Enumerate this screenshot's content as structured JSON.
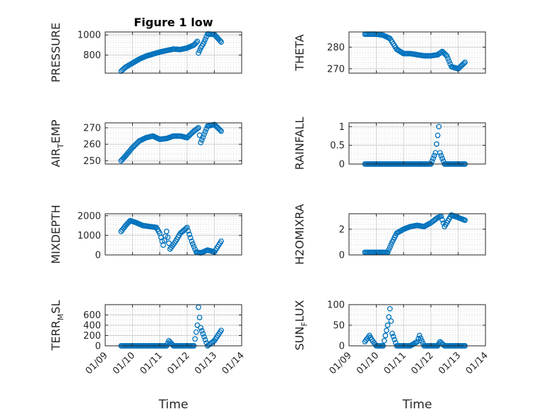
{
  "chart_data": [
    {
      "type": "scatter",
      "title": "Figure 1 low",
      "ylabel": "PRESSURE",
      "ylabel_parts": [
        "PRESSURE"
      ],
      "ylim": [
        620,
        1030
      ],
      "yticks": [
        800,
        1000
      ],
      "ytick_labels": [
        "800",
        "1000"
      ],
      "x": [
        "01/09 14:00",
        "01/09 18:00",
        "01/10 00:00",
        "01/10 06:00",
        "01/10 12:00",
        "01/10 18:00",
        "01/11 00:00",
        "01/11 06:00",
        "01/11 12:00",
        "01/11 18:00",
        "01/12 00:00",
        "01/12 06:00",
        "01/12 09:00",
        "01/12 10:00",
        "01/12 12:00",
        "01/12 15:00",
        "01/12 18:00",
        "01/13 00:00",
        "01/13 06:00"
      ],
      "y": [
        640,
        680,
        720,
        760,
        790,
        810,
        830,
        845,
        860,
        855,
        870,
        900,
        935,
        820,
        870,
        930,
        1010,
        1005,
        930
      ]
    },
    {
      "type": "scatter",
      "title": "",
      "ylabel": "THETA",
      "ylabel_parts": [
        "THETA"
      ],
      "ylim": [
        268,
        287
      ],
      "yticks": [
        270,
        280
      ],
      "ytick_labels": [
        "270",
        "280"
      ],
      "x": [
        "01/09 14:00",
        "01/09 18:00",
        "01/10 00:00",
        "01/10 06:00",
        "01/10 12:00",
        "01/10 18:00",
        "01/11 00:00",
        "01/11 06:00",
        "01/11 12:00",
        "01/11 18:00",
        "01/12 00:00",
        "01/12 06:00",
        "01/12 10:00",
        "01/12 14:00",
        "01/12 18:00",
        "01/13 00:00",
        "01/13 06:00"
      ],
      "y": [
        286,
        286,
        286,
        285.5,
        284,
        279,
        277,
        277,
        276.5,
        276,
        276,
        276.5,
        278,
        276,
        271,
        270,
        273
      ]
    },
    {
      "type": "scatter",
      "title": "",
      "ylabel": "AIR_TEMP",
      "ylabel_parts": [
        "AIR",
        "T",
        "EMP"
      ],
      "ylim": [
        248,
        273
      ],
      "yticks": [
        250,
        260,
        270
      ],
      "ytick_labels": [
        "250",
        "260",
        "270"
      ],
      "x": [
        "01/09 14:00",
        "01/09 18:00",
        "01/10 00:00",
        "01/10 06:00",
        "01/10 12:00",
        "01/10 18:00",
        "01/11 00:00",
        "01/11 06:00",
        "01/11 12:00",
        "01/11 18:00",
        "01/12 00:00",
        "01/12 06:00",
        "01/12 10:00",
        "01/12 12:00",
        "01/12 18:00",
        "01/13 00:00",
        "01/13 06:00"
      ],
      "y": [
        250,
        253,
        258,
        262,
        264,
        265,
        263,
        263.5,
        265,
        265,
        264,
        268,
        270,
        261,
        271,
        272,
        268
      ]
    },
    {
      "type": "scatter",
      "title": "",
      "ylabel": "RAINFALL",
      "ylabel_parts": [
        "RAINFALL"
      ],
      "ylim": [
        0,
        1.1
      ],
      "yticks": [
        0,
        0.5,
        1
      ],
      "ytick_labels": [
        "0",
        "0.5",
        "1"
      ],
      "x": [
        "01/09 14:00",
        "01/09 18:00",
        "01/10 00:00",
        "01/10 06:00",
        "01/10 12:00",
        "01/10 18:00",
        "01/11 00:00",
        "01/11 06:00",
        "01/11 12:00",
        "01/11 18:00",
        "01/12 00:00",
        "01/12 04:00",
        "01/12 07:00",
        "01/12 08:00",
        "01/12 12:00",
        "01/12 18:00",
        "01/13 00:00",
        "01/13 06:00"
      ],
      "y": [
        0,
        0,
        0,
        0,
        0,
        0,
        0,
        0,
        0,
        0,
        0,
        0.3,
        1,
        0.3,
        0,
        0,
        0,
        0
      ]
    },
    {
      "type": "scatter",
      "title": "",
      "ylabel": "MIXDEPTH",
      "ylabel_parts": [
        "MIXDEPTH"
      ],
      "ylim": [
        0,
        2100
      ],
      "yticks": [
        0,
        1000,
        2000
      ],
      "ytick_labels": [
        "0",
        "1000",
        "2000"
      ],
      "x": [
        "01/09 14:00",
        "01/09 18:00",
        "01/09 22:00",
        "01/10 03:00",
        "01/10 09:00",
        "01/10 15:00",
        "01/10 21:00",
        "01/11 00:00",
        "01/11 03:00",
        "01/11 06:00",
        "01/11 09:00",
        "01/11 14:00",
        "01/11 18:00",
        "01/12 00:00",
        "01/12 04:00",
        "01/12 08:00",
        "01/12 12:00",
        "01/12 18:00",
        "01/13 00:00",
        "01/13 06:00"
      ],
      "y": [
        1200,
        1500,
        1750,
        1650,
        1500,
        1450,
        1400,
        1100,
        500,
        1200,
        300,
        700,
        1100,
        1400,
        700,
        150,
        100,
        250,
        150,
        700
      ]
    },
    {
      "type": "scatter",
      "title": "",
      "ylabel": "H2OMIXRA",
      "ylabel_parts": [
        "H2OMIXRA"
      ],
      "ylim": [
        0,
        3.2
      ],
      "yticks": [
        0,
        2
      ],
      "ytick_labels": [
        "0",
        "2"
      ],
      "x": [
        "01/09 14:00",
        "01/09 18:00",
        "01/10 00:00",
        "01/10 06:00",
        "01/10 10:00",
        "01/10 14:00",
        "01/10 18:00",
        "01/11 00:00",
        "01/11 06:00",
        "01/11 12:00",
        "01/11 18:00",
        "01/12 00:00",
        "01/12 06:00",
        "01/12 09:00",
        "01/12 12:00",
        "01/12 18:00",
        "01/13 00:00",
        "01/13 06:00"
      ],
      "y": [
        0.2,
        0.2,
        0.2,
        0.2,
        0.2,
        1.0,
        1.7,
        2.0,
        2.2,
        2.3,
        2.2,
        2.5,
        2.9,
        3.0,
        2.2,
        3.1,
        2.9,
        2.7
      ]
    },
    {
      "type": "scatter",
      "title": "",
      "ylabel": "TERR_MSL",
      "ylabel_parts": [
        "TERR",
        "M",
        "SL"
      ],
      "ylim": [
        0,
        800
      ],
      "yticks": [
        0,
        200,
        400,
        600
      ],
      "ytick_labels": [
        "0",
        "200",
        "400",
        "600"
      ],
      "x": [
        "01/09 14:00",
        "01/09 18:00",
        "01/10 00:00",
        "01/10 06:00",
        "01/10 12:00",
        "01/10 18:00",
        "01/11 00:00",
        "01/11 06:00",
        "01/11 08:00",
        "01/11 12:00",
        "01/11 18:00",
        "01/12 00:00",
        "01/12 06:00",
        "01/12 09:00",
        "01/12 10:00",
        "01/12 12:00",
        "01/12 18:00",
        "01/13 00:00",
        "01/13 06:00"
      ],
      "y": [
        0,
        0,
        0,
        0,
        0,
        0,
        0,
        0,
        100,
        0,
        0,
        0,
        0,
        400,
        750,
        350,
        0,
        100,
        300
      ]
    },
    {
      "type": "scatter",
      "title": "",
      "ylabel": "SUN_FLUX",
      "ylabel_parts": [
        "SUN",
        "F",
        "LUX"
      ],
      "ylim": [
        0,
        100
      ],
      "yticks": [
        0,
        50,
        100
      ],
      "ytick_labels": [
        "0",
        "50",
        "100"
      ],
      "x": [
        "01/09 14:00",
        "01/09 18:00",
        "01/09 20:00",
        "01/10 00:00",
        "01/10 06:00",
        "01/10 10:00",
        "01/10 12:00",
        "01/10 14:00",
        "01/10 18:00",
        "01/11 00:00",
        "01/11 06:00",
        "01/11 12:00",
        "01/11 14:00",
        "01/11 18:00",
        "01/12 00:00",
        "01/12 06:00",
        "01/12 08:00",
        "01/12 12:00",
        "01/12 18:00",
        "01/13 00:00",
        "01/13 06:00"
      ],
      "y": [
        10,
        25,
        15,
        0,
        0,
        50,
        90,
        30,
        0,
        0,
        0,
        10,
        25,
        0,
        0,
        0,
        10,
        0,
        0,
        0,
        0
      ]
    }
  ],
  "shared_x": {
    "xlim": [
      "01/09 00:00",
      "01/14 00:00"
    ],
    "xticks": [
      "01/09",
      "01/10",
      "01/11",
      "01/12",
      "01/13",
      "01/14"
    ],
    "xlabel": "Time"
  },
  "style": {
    "marker_color": "#0072BD",
    "axis_color": "#262626",
    "grid_color": "#d9d9d9"
  }
}
